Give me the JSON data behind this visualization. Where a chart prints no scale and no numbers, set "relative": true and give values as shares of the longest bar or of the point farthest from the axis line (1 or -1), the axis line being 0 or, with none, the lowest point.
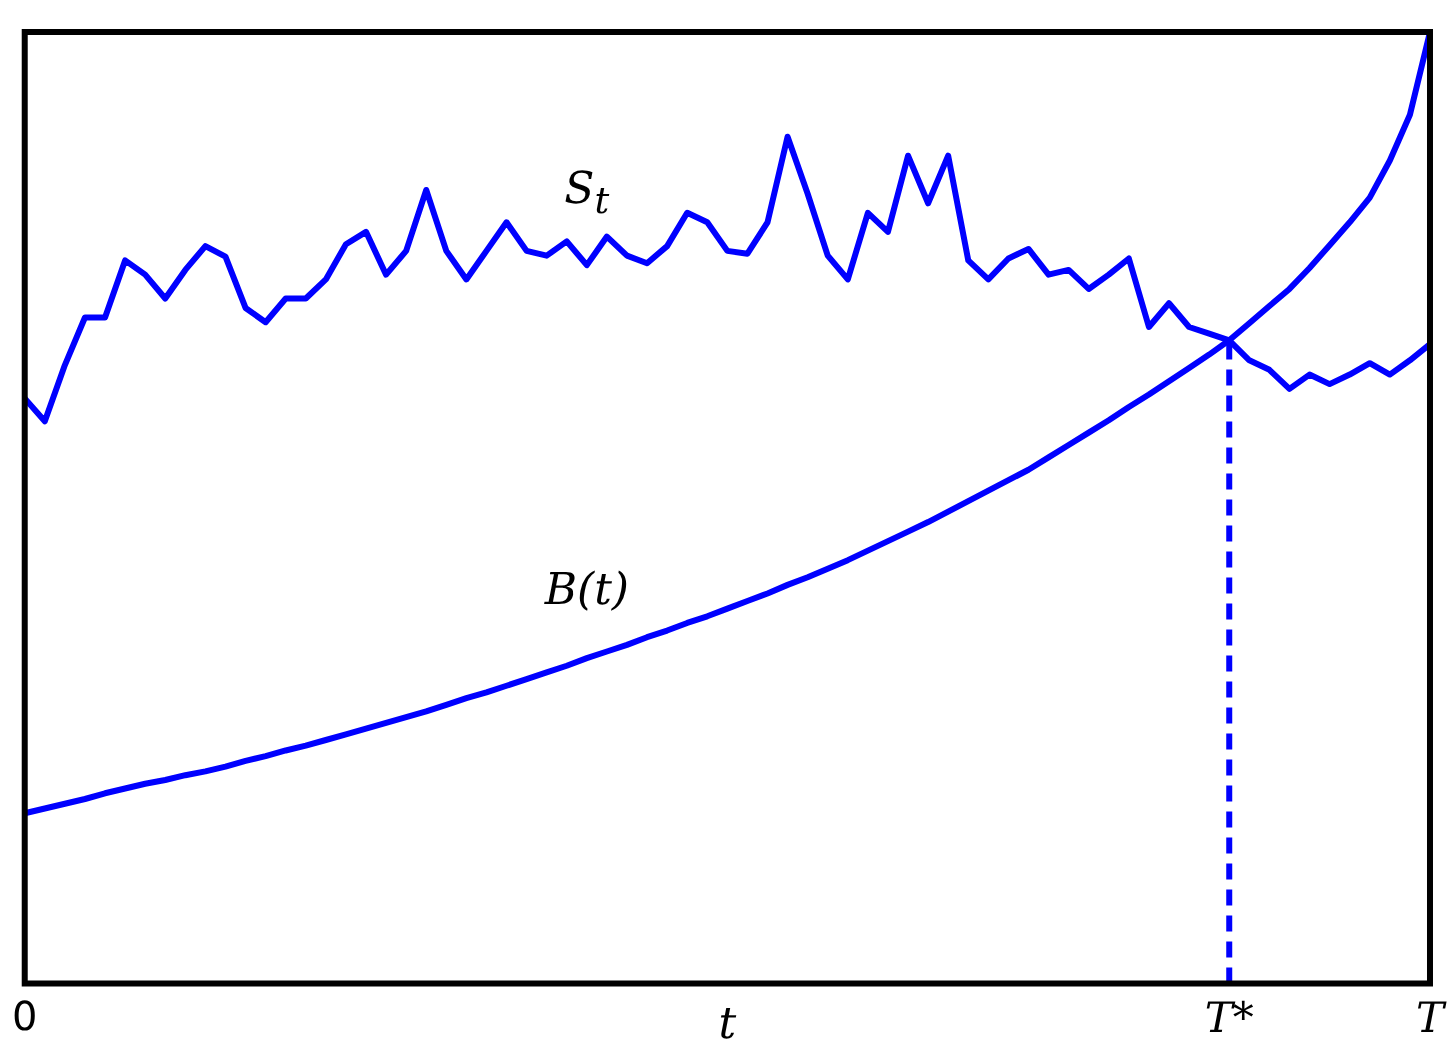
{
  "chart_data": {
    "type": "line",
    "relative": true,
    "xlabel": "t",
    "categories": [
      "0",
      null,
      null,
      null,
      null,
      null,
      null,
      null,
      null,
      null,
      null,
      null,
      null,
      null,
      null,
      null,
      null,
      null,
      null,
      null,
      null,
      null,
      null,
      null,
      null,
      null,
      null,
      null,
      null,
      null,
      null,
      null,
      null,
      null,
      null,
      null,
      null,
      null,
      null,
      null,
      null,
      null,
      null,
      null,
      null,
      null,
      null,
      null,
      null,
      null,
      null,
      null,
      null,
      null,
      null,
      null,
      null,
      null,
      null,
      null,
      "T*",
      null,
      null,
      null,
      null,
      null,
      null,
      null,
      null,
      null,
      "T"
    ],
    "grid": false,
    "legend": false,
    "marker": "none",
    "line_style": "solid",
    "series": [
      {
        "name": "S$_{t}$",
        "color": "#0000ff",
        "values": [
          0.615,
          0.591,
          0.65,
          0.7,
          0.7,
          0.76,
          0.745,
          0.72,
          0.75,
          0.775,
          0.764,
          0.71,
          0.695,
          0.72,
          0.72,
          0.74,
          0.777,
          0.79,
          0.745,
          0.77,
          0.834,
          0.77,
          0.74,
          0.77,
          0.8,
          0.77,
          0.765,
          0.78,
          0.755,
          0.785,
          0.765,
          0.757,
          0.775,
          0.81,
          0.8,
          0.77,
          0.767,
          0.8,
          0.89,
          0.83,
          0.765,
          0.74,
          0.81,
          0.79,
          0.87,
          0.82,
          0.87,
          0.76,
          0.74,
          0.762,
          0.772,
          0.745,
          0.75,
          0.73,
          0.745,
          0.762,
          0.69,
          0.715,
          0.69,
          0.683,
          0.676,
          0.655,
          0.645,
          0.625,
          0.64,
          0.63,
          0.64,
          0.652,
          0.64,
          0.655,
          0.672
        ]
      },
      {
        "name": "B(t)",
        "color": "#0000ff",
        "values": [
          0.179,
          0.184,
          0.189,
          0.194,
          0.2,
          0.205,
          0.21,
          0.214,
          0.219,
          0.223,
          0.228,
          0.234,
          0.239,
          0.245,
          0.25,
          0.256,
          0.262,
          0.268,
          0.274,
          0.28,
          0.286,
          0.293,
          0.3,
          0.306,
          0.313,
          0.32,
          0.327,
          0.334,
          0.342,
          0.349,
          0.356,
          0.364,
          0.371,
          0.379,
          0.386,
          0.394,
          0.402,
          0.41,
          0.419,
          0.427,
          0.436,
          0.445,
          0.455,
          0.465,
          0.475,
          0.485,
          0.496,
          0.507,
          0.518,
          0.529,
          0.54,
          0.553,
          0.566,
          0.579,
          0.592,
          0.606,
          0.619,
          0.633,
          0.647,
          0.661,
          0.676,
          0.694,
          0.712,
          0.73,
          0.752,
          0.776,
          0.8,
          0.826,
          0.865,
          0.913,
          1.0
        ]
      }
    ],
    "ref_lines": [
      {
        "axis": "x",
        "value": "T*",
        "color": "#0000ff",
        "line_style": "dashed"
      }
    ]
  }
}
